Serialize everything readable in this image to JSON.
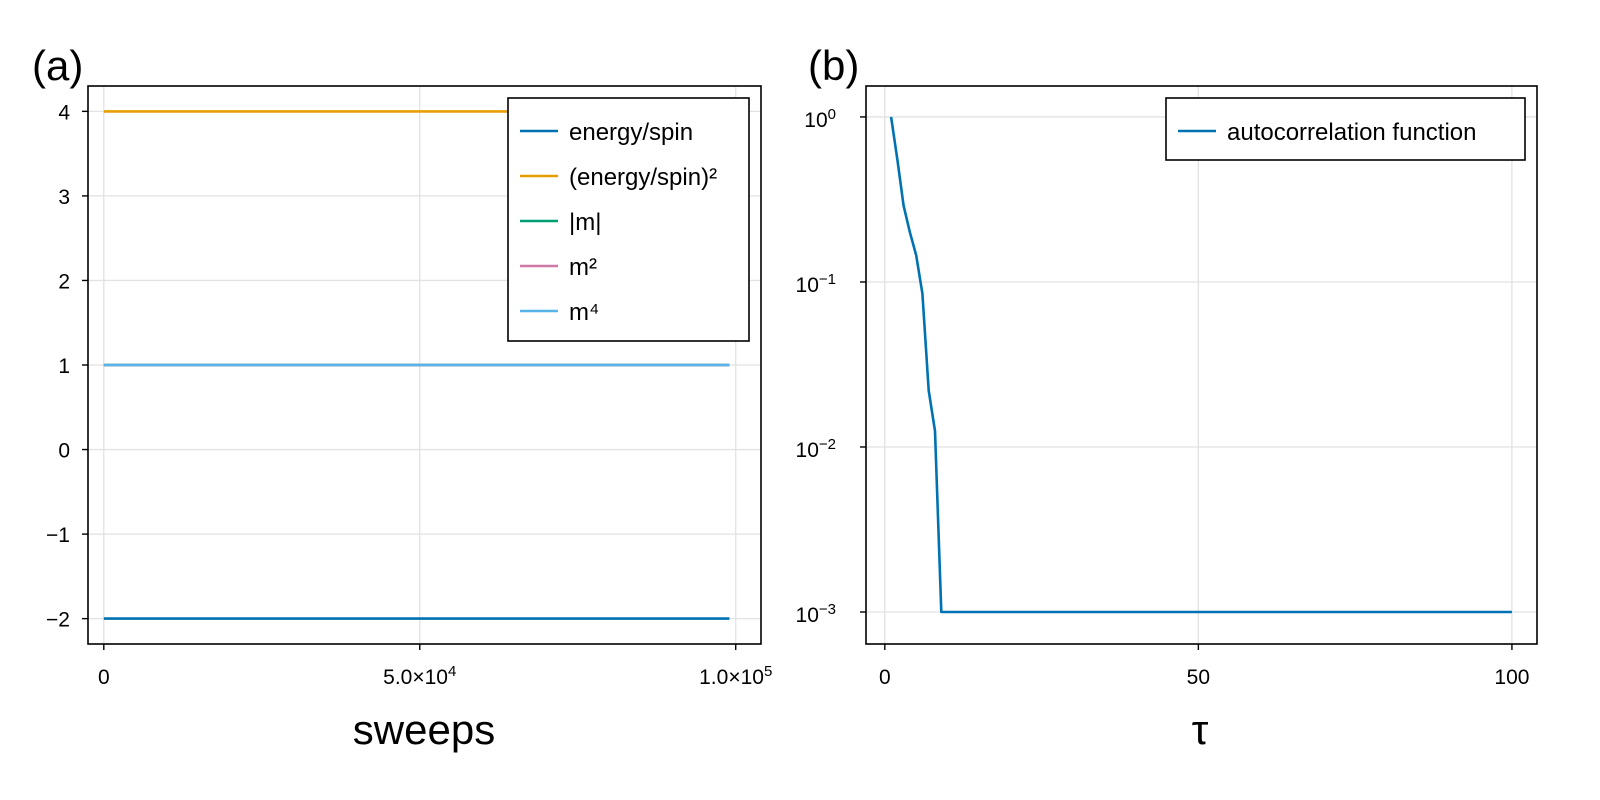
{
  "chart_data": [
    {
      "type": "line",
      "panel_label": "(a)",
      "xlabel": "sweeps",
      "ylabel": "",
      "xlim": [
        -2500,
        104000
      ],
      "ylim": [
        -2.3,
        4.3
      ],
      "x_ticks": [
        {
          "value": 0,
          "base": "0",
          "exp": ""
        },
        {
          "value": 50000,
          "base": "5.0×10",
          "exp": "4"
        },
        {
          "value": 100000,
          "base": "1.0×10",
          "exp": "5"
        }
      ],
      "y_ticks": [
        {
          "value": -2,
          "label": "−2"
        },
        {
          "value": -1,
          "label": "−1"
        },
        {
          "value": 0,
          "label": "0"
        },
        {
          "value": 1,
          "label": "1"
        },
        {
          "value": 2,
          "label": "2"
        },
        {
          "value": 3,
          "label": "3"
        },
        {
          "value": 4,
          "label": "4"
        }
      ],
      "grid": true,
      "legend_position": "top-right",
      "series": [
        {
          "name": "energy/spin",
          "color": "#0072b2",
          "x": [
            0,
            99000
          ],
          "y": [
            -2,
            -2
          ]
        },
        {
          "name": "(energy/spin)²",
          "color": "#e69f00",
          "x": [
            0,
            99000
          ],
          "y": [
            4,
            4
          ]
        },
        {
          "name": "|m|",
          "color": "#009e73",
          "x": [
            0,
            99000
          ],
          "y": [
            1,
            1
          ]
        },
        {
          "name": "m²",
          "color": "#cc79a7",
          "x": [
            0,
            99000
          ],
          "y": [
            1,
            1
          ]
        },
        {
          "name": "m⁴",
          "color": "#56b4e9",
          "x": [
            0,
            99000
          ],
          "y": [
            1,
            1
          ]
        }
      ]
    },
    {
      "type": "line",
      "panel_label": "(b)",
      "xlabel": "τ",
      "ylabel": "",
      "yscale": "log",
      "xlim": [
        -3.0,
        104.0
      ],
      "ylim": [
        0.00064,
        1.54
      ],
      "x_ticks": [
        {
          "value": 0,
          "label": "0"
        },
        {
          "value": 50,
          "label": "50"
        },
        {
          "value": 100,
          "label": "100"
        }
      ],
      "y_ticks": [
        {
          "value": 1,
          "base": "10",
          "exp": "0"
        },
        {
          "value": 0.1,
          "base": "10",
          "exp": "−1"
        },
        {
          "value": 0.01,
          "base": "10",
          "exp": "−2"
        },
        {
          "value": 0.001,
          "base": "10",
          "exp": "−3"
        }
      ],
      "grid": true,
      "legend_position": "top-right",
      "series": [
        {
          "name": "autocorrelation function",
          "color": "#0072b2",
          "x": [
            1,
            2,
            3,
            4,
            5,
            6,
            7,
            8,
            9,
            100
          ],
          "y": [
            1.0,
            0.55,
            0.29,
            0.2,
            0.145,
            0.085,
            0.022,
            0.0125,
            0.001,
            0.001
          ]
        }
      ]
    }
  ]
}
